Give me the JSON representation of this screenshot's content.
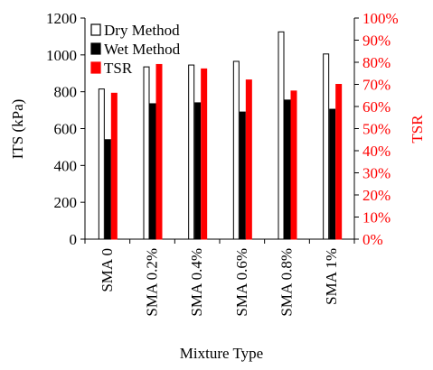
{
  "chart_data": {
    "type": "bar",
    "categories": [
      "SMA 0",
      "SMA 0.2%",
      "SMA 0.4%",
      "SMA 0.6%",
      "SMA 0.8%",
      "SMA 1%"
    ],
    "series": [
      {
        "name": "Dry Method",
        "axis": "left",
        "color": "#ffffff",
        "edge": "#000000",
        "values": [
          815,
          935,
          945,
          965,
          1125,
          1005
        ]
      },
      {
        "name": "Wet Method",
        "axis": "left",
        "color": "#000000",
        "edge": "#000000",
        "values": [
          540,
          735,
          740,
          690,
          755,
          705
        ]
      },
      {
        "name": "TSR",
        "axis": "right",
        "color": "#ff0000",
        "edge": "#ff0000",
        "values": [
          66,
          79,
          77,
          72,
          67,
          70
        ]
      }
    ],
    "xlabel": "Mixture Type",
    "ylabel": "ITS (kPa)",
    "y2label": "TSR",
    "ylim": [
      0,
      1200
    ],
    "y2lim": [
      0,
      100
    ],
    "yticks": [
      "0",
      "200",
      "400",
      "600",
      "800",
      "1000",
      "1200"
    ],
    "y2ticks": [
      "0%",
      "10%",
      "20%",
      "30%",
      "40%",
      "50%",
      "60%",
      "70%",
      "80%",
      "90%",
      "100%"
    ],
    "legend_position": "top-left",
    "grid": false
  }
}
